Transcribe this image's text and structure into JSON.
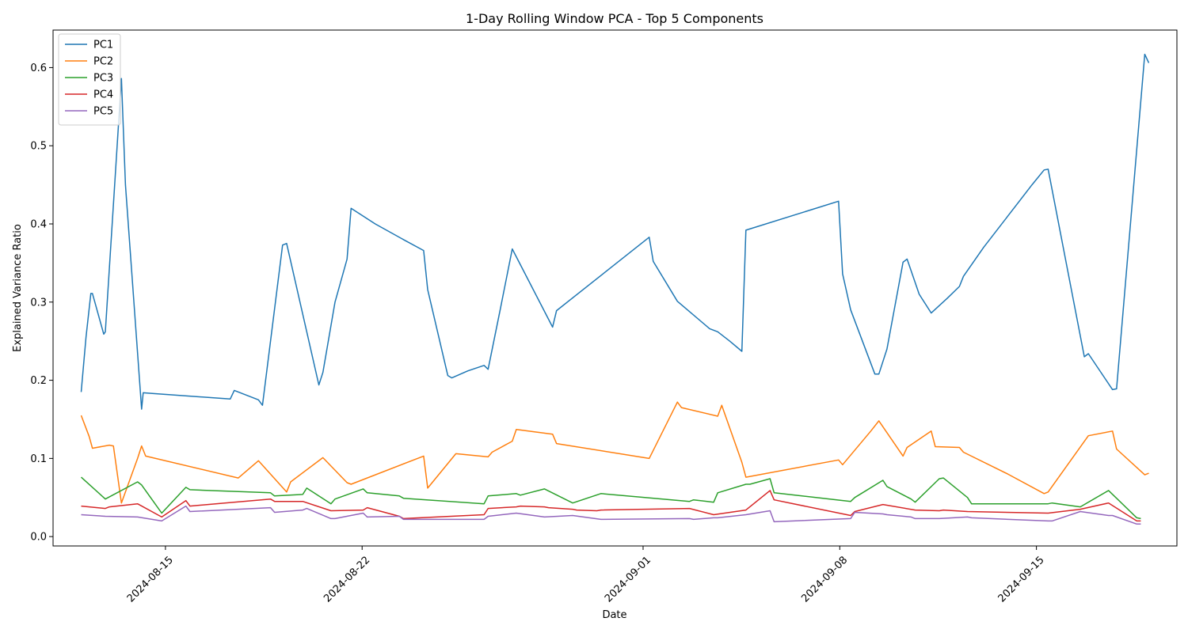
{
  "chart_data": {
    "type": "line",
    "title": "1-Day Rolling Window PCA - Top 5 Components",
    "xlabel": "Date",
    "ylabel": "Explained Variance Ratio",
    "x_start": "2024-08-12",
    "x_end": "2024-09-19",
    "xlim": [
      "2024-08-11",
      "2024-09-20"
    ],
    "xticks": [
      "2024-08-15",
      "2024-08-22",
      "2024-09-01",
      "2024-09-08",
      "2024-09-15"
    ],
    "ylim": [
      -0.012,
      0.648
    ],
    "yticks": [
      0.0,
      0.1,
      0.2,
      0.3,
      0.4,
      0.5,
      0.6
    ],
    "ytick_labels": [
      "0.0",
      "0.1",
      "0.2",
      "0.3",
      "0.4",
      "0.5",
      "0.6"
    ],
    "grid": false,
    "legend": "upper-left",
    "series": [
      {
        "name": "PC1",
        "color": "#1f77b4",
        "points": [
          [
            0.0,
            0.185
          ],
          [
            0.06,
            0.255
          ],
          [
            0.12,
            0.311
          ],
          [
            0.14,
            0.311
          ],
          [
            0.28,
            0.259
          ],
          [
            0.3,
            0.262
          ],
          [
            0.5,
            0.586
          ],
          [
            0.55,
            0.45
          ],
          [
            0.75,
            0.163
          ],
          [
            0.77,
            0.184
          ],
          [
            0.9,
            0.183
          ],
          [
            1.85,
            0.176
          ],
          [
            1.9,
            0.187
          ],
          [
            2.2,
            0.175
          ],
          [
            2.25,
            0.168
          ],
          [
            2.5,
            0.373
          ],
          [
            2.55,
            0.375
          ],
          [
            2.95,
            0.194
          ],
          [
            3.0,
            0.21
          ],
          [
            3.15,
            0.3
          ],
          [
            3.3,
            0.355
          ],
          [
            3.35,
            0.42
          ],
          [
            3.65,
            0.4
          ],
          [
            4.0,
            0.38
          ],
          [
            4.25,
            0.366
          ],
          [
            4.3,
            0.316
          ],
          [
            4.55,
            0.206
          ],
          [
            4.6,
            0.203
          ],
          [
            4.8,
            0.212
          ],
          [
            5.0,
            0.219
          ],
          [
            5.05,
            0.214
          ],
          [
            5.2,
            0.29
          ],
          [
            5.35,
            0.368
          ],
          [
            5.85,
            0.268
          ],
          [
            5.9,
            0.289
          ],
          [
            7.05,
            0.383
          ],
          [
            7.1,
            0.352
          ],
          [
            7.4,
            0.301
          ],
          [
            7.8,
            0.266
          ],
          [
            7.9,
            0.262
          ],
          [
            8.05,
            0.25
          ],
          [
            8.2,
            0.237
          ],
          [
            8.25,
            0.392
          ],
          [
            9.4,
            0.429
          ],
          [
            9.45,
            0.336
          ],
          [
            9.55,
            0.29
          ],
          [
            9.85,
            0.208
          ],
          [
            9.9,
            0.208
          ],
          [
            10.0,
            0.24
          ],
          [
            10.2,
            0.351
          ],
          [
            10.25,
            0.355
          ],
          [
            10.4,
            0.31
          ],
          [
            10.55,
            0.286
          ],
          [
            10.75,
            0.305
          ],
          [
            10.9,
            0.32
          ],
          [
            10.95,
            0.333
          ],
          [
            11.2,
            0.37
          ],
          [
            11.5,
            0.41
          ],
          [
            11.8,
            0.45
          ],
          [
            11.95,
            0.469
          ],
          [
            12.0,
            0.47
          ],
          [
            12.45,
            0.23
          ],
          [
            12.5,
            0.234
          ],
          [
            12.8,
            0.188
          ],
          [
            12.85,
            0.189
          ],
          [
            13.2,
            0.617
          ],
          [
            13.25,
            0.606
          ]
        ]
      },
      {
        "name": "PC2",
        "color": "#ff7f0e",
        "points": [
          [
            0.0,
            0.155
          ],
          [
            0.1,
            0.128
          ],
          [
            0.14,
            0.113
          ],
          [
            0.35,
            0.117
          ],
          [
            0.4,
            0.116
          ],
          [
            0.5,
            0.043
          ],
          [
            0.7,
            0.1
          ],
          [
            0.75,
            0.116
          ],
          [
            0.8,
            0.103
          ],
          [
            1.95,
            0.075
          ],
          [
            2.2,
            0.097
          ],
          [
            2.55,
            0.057
          ],
          [
            2.6,
            0.07
          ],
          [
            3.0,
            0.101
          ],
          [
            3.3,
            0.069
          ],
          [
            3.35,
            0.067
          ],
          [
            4.25,
            0.103
          ],
          [
            4.3,
            0.062
          ],
          [
            4.65,
            0.106
          ],
          [
            5.05,
            0.102
          ],
          [
            5.1,
            0.108
          ],
          [
            5.35,
            0.122
          ],
          [
            5.4,
            0.137
          ],
          [
            5.85,
            0.131
          ],
          [
            5.9,
            0.119
          ],
          [
            7.05,
            0.1
          ],
          [
            7.4,
            0.172
          ],
          [
            7.45,
            0.165
          ],
          [
            7.9,
            0.154
          ],
          [
            7.95,
            0.168
          ],
          [
            8.2,
            0.095
          ],
          [
            8.25,
            0.076
          ],
          [
            9.4,
            0.098
          ],
          [
            9.45,
            0.092
          ],
          [
            9.8,
            0.135
          ],
          [
            9.9,
            0.148
          ],
          [
            10.2,
            0.103
          ],
          [
            10.25,
            0.114
          ],
          [
            10.55,
            0.135
          ],
          [
            10.6,
            0.115
          ],
          [
            10.9,
            0.114
          ],
          [
            10.95,
            0.108
          ],
          [
            11.5,
            0.08
          ],
          [
            11.95,
            0.055
          ],
          [
            12.0,
            0.057
          ],
          [
            12.5,
            0.129
          ],
          [
            12.8,
            0.135
          ],
          [
            12.85,
            0.112
          ],
          [
            13.2,
            0.079
          ],
          [
            13.25,
            0.081
          ]
        ]
      },
      {
        "name": "PC3",
        "color": "#2ca02c",
        "points": [
          [
            0.0,
            0.076
          ],
          [
            0.3,
            0.048
          ],
          [
            0.7,
            0.07
          ],
          [
            0.75,
            0.066
          ],
          [
            1.0,
            0.03
          ],
          [
            1.3,
            0.063
          ],
          [
            1.35,
            0.06
          ],
          [
            2.35,
            0.056
          ],
          [
            2.4,
            0.052
          ],
          [
            2.75,
            0.054
          ],
          [
            2.8,
            0.062
          ],
          [
            3.1,
            0.042
          ],
          [
            3.15,
            0.048
          ],
          [
            3.5,
            0.061
          ],
          [
            3.55,
            0.056
          ],
          [
            3.95,
            0.052
          ],
          [
            4.0,
            0.049
          ],
          [
            5.0,
            0.042
          ],
          [
            5.05,
            0.052
          ],
          [
            5.4,
            0.055
          ],
          [
            5.45,
            0.053
          ],
          [
            5.75,
            0.061
          ],
          [
            6.1,
            0.043
          ],
          [
            6.45,
            0.055
          ],
          [
            7.55,
            0.045
          ],
          [
            7.6,
            0.047
          ],
          [
            7.85,
            0.044
          ],
          [
            7.9,
            0.056
          ],
          [
            8.25,
            0.067
          ],
          [
            8.3,
            0.067
          ],
          [
            8.55,
            0.074
          ],
          [
            8.6,
            0.056
          ],
          [
            9.55,
            0.045
          ],
          [
            9.6,
            0.05
          ],
          [
            9.95,
            0.072
          ],
          [
            10.0,
            0.064
          ],
          [
            10.3,
            0.048
          ],
          [
            10.35,
            0.044
          ],
          [
            10.65,
            0.074
          ],
          [
            10.7,
            0.075
          ],
          [
            11.0,
            0.05
          ],
          [
            11.05,
            0.042
          ],
          [
            12.0,
            0.042
          ],
          [
            12.05,
            0.043
          ],
          [
            12.4,
            0.038
          ],
          [
            12.75,
            0.059
          ],
          [
            13.1,
            0.024
          ],
          [
            13.15,
            0.023
          ]
        ]
      },
      {
        "name": "PC4",
        "color": "#d62728",
        "points": [
          [
            0.0,
            0.039
          ],
          [
            0.3,
            0.036
          ],
          [
            0.35,
            0.038
          ],
          [
            0.7,
            0.042
          ],
          [
            1.0,
            0.025
          ],
          [
            1.3,
            0.046
          ],
          [
            1.35,
            0.039
          ],
          [
            2.35,
            0.048
          ],
          [
            2.4,
            0.045
          ],
          [
            2.75,
            0.045
          ],
          [
            3.1,
            0.033
          ],
          [
            3.5,
            0.034
          ],
          [
            3.55,
            0.037
          ],
          [
            3.95,
            0.026
          ],
          [
            4.0,
            0.023
          ],
          [
            5.0,
            0.028
          ],
          [
            5.05,
            0.036
          ],
          [
            5.4,
            0.038
          ],
          [
            5.45,
            0.039
          ],
          [
            5.75,
            0.038
          ],
          [
            5.8,
            0.037
          ],
          [
            6.1,
            0.035
          ],
          [
            6.15,
            0.034
          ],
          [
            6.4,
            0.033
          ],
          [
            6.45,
            0.034
          ],
          [
            7.55,
            0.036
          ],
          [
            7.85,
            0.028
          ],
          [
            8.25,
            0.034
          ],
          [
            8.55,
            0.059
          ],
          [
            8.6,
            0.047
          ],
          [
            9.55,
            0.027
          ],
          [
            9.6,
            0.032
          ],
          [
            9.95,
            0.041
          ],
          [
            10.35,
            0.034
          ],
          [
            10.65,
            0.033
          ],
          [
            10.7,
            0.034
          ],
          [
            11.0,
            0.032
          ],
          [
            12.0,
            0.03
          ],
          [
            12.4,
            0.035
          ],
          [
            12.75,
            0.043
          ],
          [
            13.1,
            0.02
          ],
          [
            13.15,
            0.02
          ]
        ]
      },
      {
        "name": "PC5",
        "color": "#9467bd",
        "points": [
          [
            0.0,
            0.028
          ],
          [
            0.3,
            0.026
          ],
          [
            0.7,
            0.025
          ],
          [
            1.0,
            0.02
          ],
          [
            1.3,
            0.039
          ],
          [
            1.35,
            0.032
          ],
          [
            2.35,
            0.037
          ],
          [
            2.4,
            0.031
          ],
          [
            2.75,
            0.034
          ],
          [
            2.8,
            0.036
          ],
          [
            3.1,
            0.023
          ],
          [
            3.15,
            0.023
          ],
          [
            3.5,
            0.03
          ],
          [
            3.55,
            0.025
          ],
          [
            3.95,
            0.026
          ],
          [
            4.0,
            0.022
          ],
          [
            5.0,
            0.022
          ],
          [
            5.05,
            0.026
          ],
          [
            5.4,
            0.03
          ],
          [
            5.75,
            0.025
          ],
          [
            6.1,
            0.027
          ],
          [
            6.45,
            0.022
          ],
          [
            7.55,
            0.023
          ],
          [
            7.6,
            0.022
          ],
          [
            7.85,
            0.024
          ],
          [
            7.9,
            0.024
          ],
          [
            8.25,
            0.028
          ],
          [
            8.55,
            0.033
          ],
          [
            8.6,
            0.019
          ],
          [
            9.55,
            0.023
          ],
          [
            9.6,
            0.031
          ],
          [
            9.95,
            0.029
          ],
          [
            10.0,
            0.028
          ],
          [
            10.3,
            0.025
          ],
          [
            10.35,
            0.023
          ],
          [
            10.65,
            0.023
          ],
          [
            11.0,
            0.025
          ],
          [
            11.05,
            0.024
          ],
          [
            12.0,
            0.02
          ],
          [
            12.05,
            0.02
          ],
          [
            12.4,
            0.032
          ],
          [
            12.75,
            0.027
          ],
          [
            12.8,
            0.027
          ],
          [
            13.1,
            0.016
          ],
          [
            13.15,
            0.016
          ]
        ]
      }
    ]
  }
}
